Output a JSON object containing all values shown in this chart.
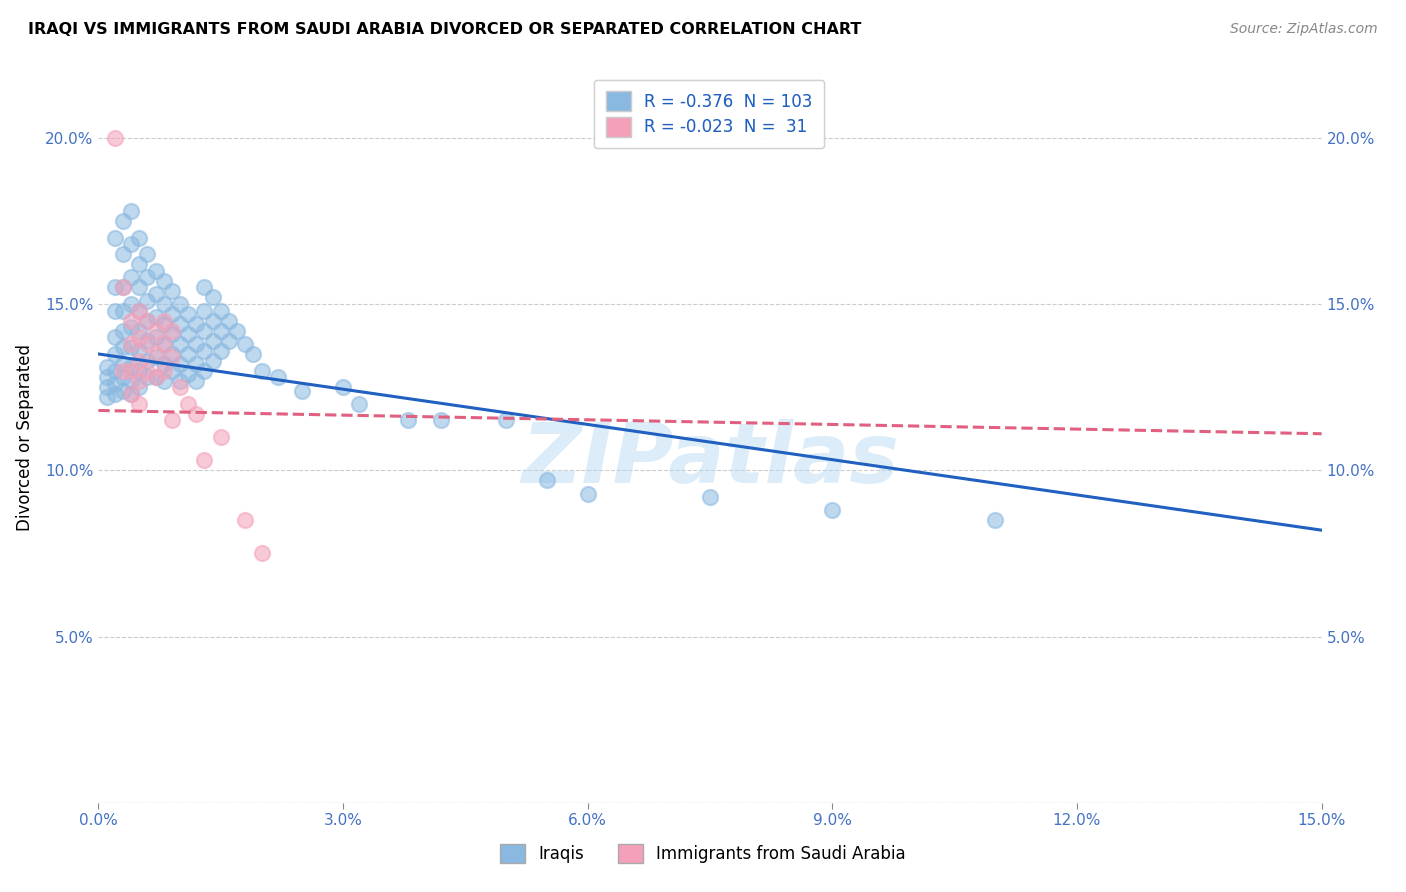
{
  "title": "IRAQI VS IMMIGRANTS FROM SAUDI ARABIA DIVORCED OR SEPARATED CORRELATION CHART",
  "source": "Source: ZipAtlas.com",
  "ylabel": "Divorced or Separated",
  "xlim": [
    0.0,
    0.15
  ],
  "ylim": [
    0.0,
    0.22
  ],
  "iraqis_color": "#89b8e0",
  "saudi_color": "#f4a0b8",
  "iraqis_line_color": "#2060c0",
  "saudi_line_color": "#e06080",
  "watermark": "ZIPatlas",
  "iraqis_regression": {
    "x_start": 0.0,
    "y_start": 0.135,
    "x_end": 0.15,
    "y_end": 0.082
  },
  "saudi_regression": {
    "x_start": 0.0,
    "y_start": 0.118,
    "x_end": 0.15,
    "y_end": 0.111
  },
  "iraqis_data": [
    [
      0.001,
      0.131
    ],
    [
      0.001,
      0.128
    ],
    [
      0.001,
      0.125
    ],
    [
      0.001,
      0.122
    ],
    [
      0.002,
      0.17
    ],
    [
      0.002,
      0.155
    ],
    [
      0.002,
      0.148
    ],
    [
      0.002,
      0.14
    ],
    [
      0.002,
      0.135
    ],
    [
      0.002,
      0.13
    ],
    [
      0.002,
      0.126
    ],
    [
      0.002,
      0.123
    ],
    [
      0.003,
      0.175
    ],
    [
      0.003,
      0.165
    ],
    [
      0.003,
      0.155
    ],
    [
      0.003,
      0.148
    ],
    [
      0.003,
      0.142
    ],
    [
      0.003,
      0.137
    ],
    [
      0.003,
      0.132
    ],
    [
      0.003,
      0.128
    ],
    [
      0.003,
      0.124
    ],
    [
      0.004,
      0.178
    ],
    [
      0.004,
      0.168
    ],
    [
      0.004,
      0.158
    ],
    [
      0.004,
      0.15
    ],
    [
      0.004,
      0.143
    ],
    [
      0.004,
      0.137
    ],
    [
      0.004,
      0.131
    ],
    [
      0.004,
      0.127
    ],
    [
      0.004,
      0.123
    ],
    [
      0.005,
      0.17
    ],
    [
      0.005,
      0.162
    ],
    [
      0.005,
      0.155
    ],
    [
      0.005,
      0.148
    ],
    [
      0.005,
      0.142
    ],
    [
      0.005,
      0.136
    ],
    [
      0.005,
      0.13
    ],
    [
      0.005,
      0.125
    ],
    [
      0.006,
      0.165
    ],
    [
      0.006,
      0.158
    ],
    [
      0.006,
      0.151
    ],
    [
      0.006,
      0.145
    ],
    [
      0.006,
      0.139
    ],
    [
      0.006,
      0.133
    ],
    [
      0.006,
      0.128
    ],
    [
      0.007,
      0.16
    ],
    [
      0.007,
      0.153
    ],
    [
      0.007,
      0.146
    ],
    [
      0.007,
      0.14
    ],
    [
      0.007,
      0.134
    ],
    [
      0.007,
      0.128
    ],
    [
      0.008,
      0.157
    ],
    [
      0.008,
      0.15
    ],
    [
      0.008,
      0.144
    ],
    [
      0.008,
      0.138
    ],
    [
      0.008,
      0.132
    ],
    [
      0.008,
      0.127
    ],
    [
      0.009,
      0.154
    ],
    [
      0.009,
      0.147
    ],
    [
      0.009,
      0.141
    ],
    [
      0.009,
      0.135
    ],
    [
      0.009,
      0.13
    ],
    [
      0.01,
      0.15
    ],
    [
      0.01,
      0.144
    ],
    [
      0.01,
      0.138
    ],
    [
      0.01,
      0.132
    ],
    [
      0.01,
      0.127
    ],
    [
      0.011,
      0.147
    ],
    [
      0.011,
      0.141
    ],
    [
      0.011,
      0.135
    ],
    [
      0.011,
      0.129
    ],
    [
      0.012,
      0.144
    ],
    [
      0.012,
      0.138
    ],
    [
      0.012,
      0.132
    ],
    [
      0.012,
      0.127
    ],
    [
      0.013,
      0.155
    ],
    [
      0.013,
      0.148
    ],
    [
      0.013,
      0.142
    ],
    [
      0.013,
      0.136
    ],
    [
      0.013,
      0.13
    ],
    [
      0.014,
      0.152
    ],
    [
      0.014,
      0.145
    ],
    [
      0.014,
      0.139
    ],
    [
      0.014,
      0.133
    ],
    [
      0.015,
      0.148
    ],
    [
      0.015,
      0.142
    ],
    [
      0.015,
      0.136
    ],
    [
      0.016,
      0.145
    ],
    [
      0.016,
      0.139
    ],
    [
      0.017,
      0.142
    ],
    [
      0.018,
      0.138
    ],
    [
      0.019,
      0.135
    ],
    [
      0.02,
      0.13
    ],
    [
      0.022,
      0.128
    ],
    [
      0.025,
      0.124
    ],
    [
      0.03,
      0.125
    ],
    [
      0.032,
      0.12
    ],
    [
      0.038,
      0.115
    ],
    [
      0.042,
      0.115
    ],
    [
      0.05,
      0.115
    ],
    [
      0.055,
      0.097
    ],
    [
      0.06,
      0.093
    ],
    [
      0.075,
      0.092
    ],
    [
      0.09,
      0.088
    ],
    [
      0.11,
      0.085
    ]
  ],
  "saudi_data": [
    [
      0.002,
      0.2
    ],
    [
      0.003,
      0.155
    ],
    [
      0.003,
      0.13
    ],
    [
      0.004,
      0.145
    ],
    [
      0.004,
      0.138
    ],
    [
      0.004,
      0.13
    ],
    [
      0.004,
      0.123
    ],
    [
      0.005,
      0.148
    ],
    [
      0.005,
      0.14
    ],
    [
      0.005,
      0.133
    ],
    [
      0.005,
      0.127
    ],
    [
      0.005,
      0.12
    ],
    [
      0.006,
      0.145
    ],
    [
      0.006,
      0.138
    ],
    [
      0.006,
      0.13
    ],
    [
      0.007,
      0.142
    ],
    [
      0.007,
      0.135
    ],
    [
      0.007,
      0.128
    ],
    [
      0.008,
      0.145
    ],
    [
      0.008,
      0.138
    ],
    [
      0.008,
      0.13
    ],
    [
      0.009,
      0.142
    ],
    [
      0.009,
      0.134
    ],
    [
      0.009,
      0.115
    ],
    [
      0.01,
      0.125
    ],
    [
      0.011,
      0.12
    ],
    [
      0.012,
      0.117
    ],
    [
      0.013,
      0.103
    ],
    [
      0.015,
      0.11
    ],
    [
      0.018,
      0.085
    ],
    [
      0.02,
      0.075
    ]
  ]
}
